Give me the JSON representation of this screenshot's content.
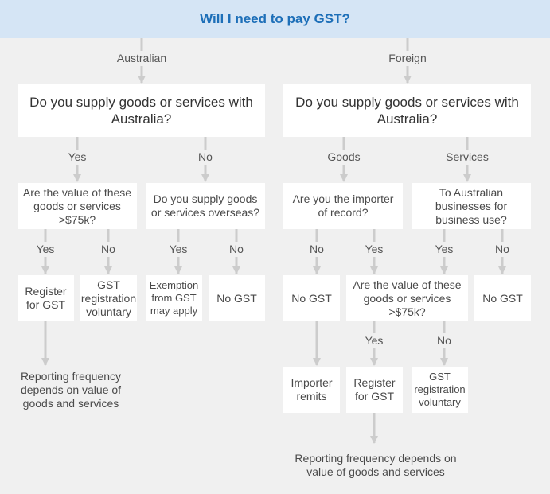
{
  "title": "Will I need to pay GST?",
  "branches": {
    "australian": "Australian",
    "foreign": "Foreign"
  },
  "q_supply": "Do you supply goods or services with Australia?",
  "labels": {
    "yes": "Yes",
    "no": "No",
    "goods": "Goods",
    "services": "Services"
  },
  "aus": {
    "q_value": "Are the value of these goods or services >$75k?",
    "q_overseas": "Do you supply goods or services overseas?",
    "register": "Register for GST",
    "voluntary": "GST registration voluntary",
    "exemption": "Exemption from GST may apply",
    "no_gst": "No GST",
    "reporting": "Reporting frequency depends on value of goods and services"
  },
  "foreign": {
    "q_importer": "Are you the importer of record?",
    "q_business": "To Australian businesses for business use?",
    "no_gst_goods": "No GST",
    "q_value": "Are the value of these goods or services >$75k?",
    "no_gst_services": "No GST",
    "importer_remits": "Importer remits",
    "register": "Register for GST",
    "voluntary": "GST registration voluntary",
    "reporting": "Reporting frequency depends on value of goods and services"
  },
  "colors": {
    "header_bg": "#d5e5f5",
    "title": "#1d6fb8",
    "connector": "#cccccc",
    "background": "#f0f0f0"
  }
}
